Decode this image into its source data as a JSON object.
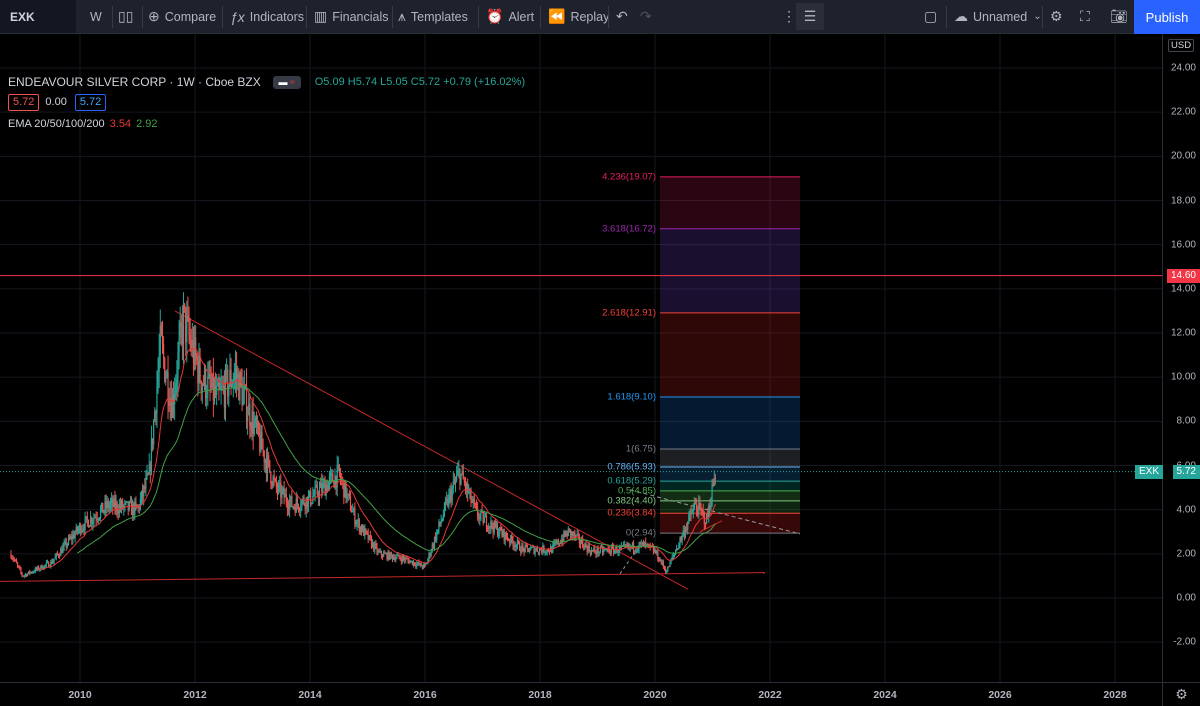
{
  "toolbar": {
    "symbol": "EXK",
    "interval": "W",
    "compare": "Compare",
    "indicators": "Indicators",
    "financials": "Financials",
    "templates": "Templates",
    "alert": "Alert",
    "replay": "Replay",
    "layout_name": "Unnamed",
    "publish": "Publish"
  },
  "legend": {
    "title": "ENDEAVOUR SILVER CORP · 1W · Cboe BZX",
    "ohlc": "O5.09 H5.74 L5.05 C5.72 +0.79 (+16.02%)",
    "bid": "5.72",
    "spread": "0.00",
    "ask": "5.72",
    "ema_label": "EMA 20/50/100/200",
    "ema_val1": "3.54",
    "ema_val2": "2.92"
  },
  "price_axis": {
    "currency": "USD",
    "ticks": [
      "24.00",
      "22.00",
      "20.00",
      "18.00",
      "16.00",
      "14.00",
      "12.00",
      "10.00",
      "8.00",
      "6.00",
      "4.00",
      "2.00",
      "0.00",
      "-2.00"
    ],
    "horizontal_line_label": "14.60",
    "last_price_symbol": "EXK",
    "last_price": "5.72"
  },
  "time_axis": {
    "ticks": [
      "2010",
      "2012",
      "2014",
      "2016",
      "2018",
      "2020",
      "2022",
      "2024",
      "2026",
      "2028"
    ]
  },
  "fib_levels": [
    {
      "label": "4.236(19.07)",
      "price": 19.07,
      "color": "#e91e63"
    },
    {
      "label": "3.618(16.72)",
      "price": 16.72,
      "color": "#9c27b0"
    },
    {
      "label": "2.618(12.91)",
      "price": 12.91,
      "color": "#f44336"
    },
    {
      "label": "1.618(9.10)",
      "price": 9.1,
      "color": "#2196f3"
    },
    {
      "label": "1(6.75)",
      "price": 6.75,
      "color": "#787b86"
    },
    {
      "label": "0.786(5.93)",
      "price": 5.93,
      "color": "#64b5f6"
    },
    {
      "label": "0.618(5.29)",
      "price": 5.29,
      "color": "#26a69a"
    },
    {
      "label": "0.5(4.85)",
      "price": 4.85,
      "color": "#4caf50"
    },
    {
      "label": "0.382(4.40)",
      "price": 4.4,
      "color": "#81c784"
    },
    {
      "label": "0.236(3.84)",
      "price": 3.84,
      "color": "#f44336"
    },
    {
      "label": "0(2.94)",
      "price": 2.94,
      "color": "#787b86"
    }
  ],
  "colors": {
    "up": "#26a69a",
    "down": "#ef5350",
    "ema_fast": "#e53935",
    "ema_slow": "#43a047",
    "hline": "#f23645",
    "trendline": "#c62828"
  }
}
